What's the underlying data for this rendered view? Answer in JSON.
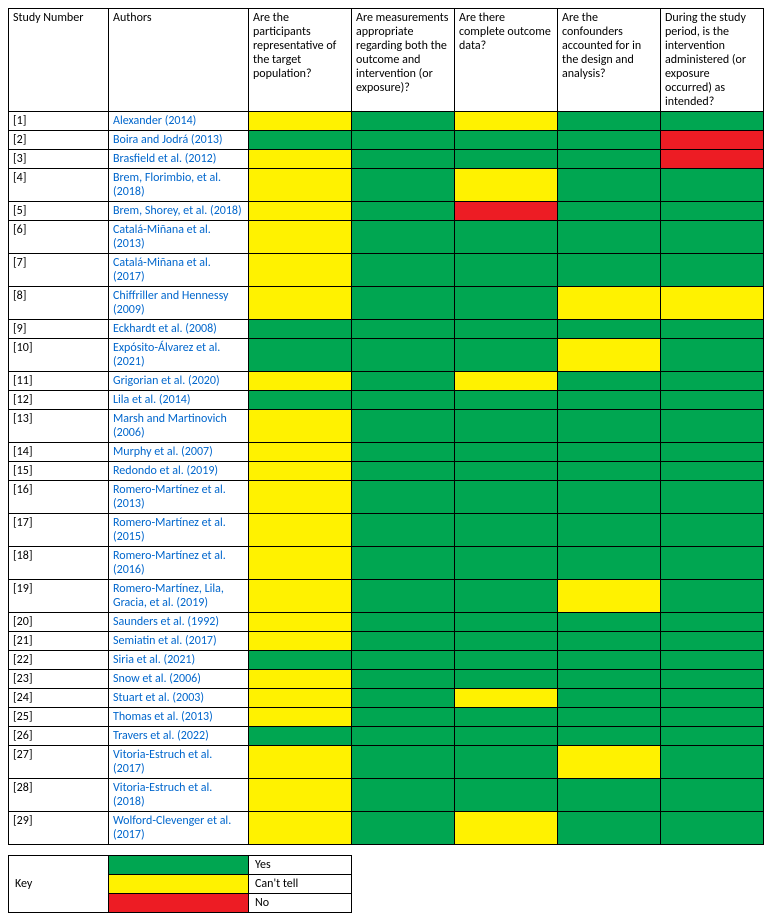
{
  "colors": {
    "yes": "#00a651",
    "cant_tell": "#fff200",
    "no": "#ed1c24"
  },
  "legend": {
    "label": "Key",
    "items": [
      {
        "color_key": "yes",
        "text": "Yes"
      },
      {
        "color_key": "cant_tell",
        "text": "Can't tell"
      },
      {
        "color_key": "no",
        "text": "No"
      }
    ]
  },
  "headers": {
    "study_number": "Study Number",
    "authors": "Authors",
    "q1": "Are the participants representative of the target population?",
    "q2": "Are measurements appropriate regarding both the outcome and intervention (or exposure)?",
    "q3": "Are there complete outcome data?",
    "q4": "Are the confounders accounted for in the design and analysis?",
    "q5": "During the study period, is the intervention administered (or exposure occurred) as intended?"
  },
  "rows": [
    {
      "num": "[1]",
      "author": "Alexander (2014)",
      "cells": [
        "cant_tell",
        "yes",
        "cant_tell",
        "yes",
        "yes"
      ]
    },
    {
      "num": "[2]",
      "author": "Boira and Jodrá (2013)",
      "cells": [
        "yes",
        "yes",
        "yes",
        "yes",
        "no"
      ]
    },
    {
      "num": "[3]",
      "author": "Brasfield et al. (2012)",
      "cells": [
        "cant_tell",
        "yes",
        "yes",
        "yes",
        "no"
      ]
    },
    {
      "num": "[4]",
      "author": "Brem, Florimbio, et al. (2018)",
      "cells": [
        "cant_tell",
        "yes",
        "cant_tell",
        "yes",
        "yes"
      ]
    },
    {
      "num": "[5]",
      "author": "Brem, Shorey, et al. (2018)",
      "cells": [
        "cant_tell",
        "yes",
        "no",
        "yes",
        "yes"
      ]
    },
    {
      "num": "[6]",
      "author": "Catalá-Miñana et al. (2013)",
      "cells": [
        "cant_tell",
        "yes",
        "yes",
        "yes",
        "yes"
      ]
    },
    {
      "num": "[7]",
      "author": "Catalá-Miñana et al. (2017)",
      "cells": [
        "cant_tell",
        "yes",
        "yes",
        "yes",
        "yes"
      ]
    },
    {
      "num": "[8]",
      "author": "Chiffriller and Hennessy (2009)",
      "cells": [
        "cant_tell",
        "yes",
        "yes",
        "cant_tell",
        "cant_tell"
      ]
    },
    {
      "num": "[9]",
      "author": "Eckhardt et al. (2008)",
      "cells": [
        "yes",
        "yes",
        "yes",
        "yes",
        "yes"
      ]
    },
    {
      "num": "[10]",
      "author": "Expósito-Álvarez et al. (2021)",
      "cells": [
        "yes",
        "yes",
        "yes",
        "cant_tell",
        "yes"
      ]
    },
    {
      "num": "[11]",
      "author": "Grigorian et al. (2020)",
      "cells": [
        "cant_tell",
        "yes",
        "cant_tell",
        "yes",
        "yes"
      ]
    },
    {
      "num": "[12]",
      "author": "Lila et al. (2014)",
      "cells": [
        "yes",
        "yes",
        "yes",
        "yes",
        "yes"
      ]
    },
    {
      "num": "[13]",
      "author": "Marsh and Martinovich (2006)",
      "cells": [
        "cant_tell",
        "yes",
        "yes",
        "yes",
        "yes"
      ]
    },
    {
      "num": "[14]",
      "author": "Murphy et al. (2007)",
      "cells": [
        "cant_tell",
        "yes",
        "yes",
        "yes",
        "yes"
      ]
    },
    {
      "num": "[15]",
      "author": "Redondo et al. (2019)",
      "cells": [
        "cant_tell",
        "yes",
        "yes",
        "yes",
        "yes"
      ]
    },
    {
      "num": "[16]",
      "author": "Romero-Martínez et al. (2013)",
      "cells": [
        "cant_tell",
        "yes",
        "yes",
        "yes",
        "yes"
      ]
    },
    {
      "num": "[17]",
      "author": "Romero-Martínez et al. (2015)",
      "cells": [
        "cant_tell",
        "yes",
        "yes",
        "yes",
        "yes"
      ]
    },
    {
      "num": "[18]",
      "author": "Romero-Martínez et al. (2016)",
      "cells": [
        "cant_tell",
        "yes",
        "yes",
        "yes",
        "yes"
      ]
    },
    {
      "num": "[19]",
      "author": "Romero-Martínez, Lila, Gracia, et al. (2019)",
      "cells": [
        "cant_tell",
        "yes",
        "yes",
        "cant_tell",
        "yes"
      ]
    },
    {
      "num": "[20]",
      "author": "Saunders et al. (1992)",
      "cells": [
        "cant_tell",
        "yes",
        "yes",
        "yes",
        "yes"
      ]
    },
    {
      "num": "[21]",
      "author": "Semiatin et al. (2017)",
      "cells": [
        "cant_tell",
        "yes",
        "yes",
        "yes",
        "yes"
      ]
    },
    {
      "num": "[22]",
      "author": "Siria et al. (2021)",
      "cells": [
        "yes",
        "yes",
        "yes",
        "yes",
        "yes"
      ]
    },
    {
      "num": "[23]",
      "author": "Snow et al. (2006)",
      "cells": [
        "cant_tell",
        "yes",
        "yes",
        "yes",
        "yes"
      ]
    },
    {
      "num": "[24]",
      "author": "Stuart et al. (2003)",
      "cells": [
        "cant_tell",
        "yes",
        "cant_tell",
        "yes",
        "yes"
      ]
    },
    {
      "num": "[25]",
      "author": "Thomas et al. (2013)",
      "cells": [
        "cant_tell",
        "yes",
        "yes",
        "yes",
        "yes"
      ]
    },
    {
      "num": "[26]",
      "author": "Travers et al. (2022)",
      "cells": [
        "yes",
        "yes",
        "yes",
        "yes",
        "yes"
      ]
    },
    {
      "num": "[27]",
      "author": "Vitoria-Estruch et al. (2017)",
      "cells": [
        "cant_tell",
        "yes",
        "yes",
        "cant_tell",
        "yes"
      ]
    },
    {
      "num": "[28]",
      "author": "Vitoria-Estruch et al. (2018)",
      "cells": [
        "cant_tell",
        "yes",
        "yes",
        "yes",
        "yes"
      ]
    },
    {
      "num": "[29]",
      "author": "Wolford-Clevenger et al. (2017)",
      "cells": [
        "cant_tell",
        "yes",
        "cant_tell",
        "yes",
        "yes"
      ]
    }
  ]
}
